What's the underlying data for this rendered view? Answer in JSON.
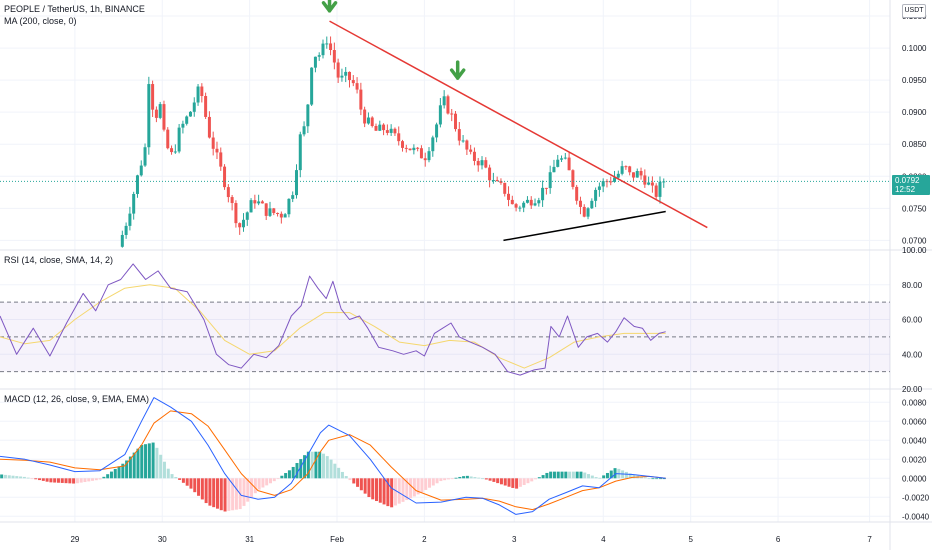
{
  "header": {
    "symbol_line": "PEOPLE / TetherUS, 1h, BINANCE",
    "ma_line": "MA (200, close, 0)",
    "currency": "USDT",
    "last_price": "0.0792",
    "countdown": "12:52"
  },
  "rsi_panel": {
    "legend": "RSI (14, close, SMA, 14, 2)"
  },
  "macd_panel": {
    "legend": "MACD (12, 26, close, 9, EMA, EMA)"
  },
  "colors": {
    "up": "#26a69a",
    "down": "#ef5350",
    "rsi": "#7e57c2",
    "rsi_ma": "#f5d76e",
    "macd": "#2962ff",
    "signal": "#ff6d00",
    "trend_upper": "#e53935",
    "trend_lower": "#000000",
    "arrow": "#43a047"
  },
  "chart_data": [
    {
      "type": "candlestick",
      "title": "PEOPLE / TetherUS, 1h, BINANCE",
      "ylim": [
        0.0685,
        0.1075
      ],
      "yticks": [
        "0.1050",
        "0.1000",
        "0.0950",
        "0.0900",
        "0.0850",
        "0.0800",
        "0.0750",
        "0.0700"
      ],
      "xticks": [
        "29",
        "30",
        "31",
        "Feb",
        "2",
        "3",
        "4",
        "5",
        "6",
        "7"
      ],
      "xlim": [
        0,
        11.2
      ],
      "waypoints": [
        [
          1.47,
          0.069
        ],
        [
          1.58,
          0.0735
        ],
        [
          1.7,
          0.08
        ],
        [
          1.8,
          0.085
        ],
        [
          1.84,
          0.097
        ],
        [
          1.9,
          0.088
        ],
        [
          1.96,
          0.092
        ],
        [
          2.03,
          0.085
        ],
        [
          2.12,
          0.083
        ],
        [
          2.2,
          0.087
        ],
        [
          2.33,
          0.09
        ],
        [
          2.45,
          0.094
        ],
        [
          2.55,
          0.087
        ],
        [
          2.7,
          0.081
        ],
        [
          2.82,
          0.076
        ],
        [
          2.92,
          0.072
        ],
        [
          3.1,
          0.0765
        ],
        [
          3.25,
          0.0745
        ],
        [
          3.45,
          0.074
        ],
        [
          3.57,
          0.078
        ],
        [
          3.65,
          0.086
        ],
        [
          3.72,
          0.088
        ],
        [
          3.8,
          0.099
        ],
        [
          3.9,
          0.099
        ],
        [
          3.97,
          0.1015
        ],
        [
          4.05,
          0.0985
        ],
        [
          4.12,
          0.095
        ],
        [
          4.22,
          0.0955
        ],
        [
          4.32,
          0.094
        ],
        [
          4.4,
          0.0895
        ],
        [
          4.55,
          0.087
        ],
        [
          4.68,
          0.0875
        ],
        [
          4.8,
          0.086
        ],
        [
          4.9,
          0.085
        ],
        [
          5.02,
          0.084
        ],
        [
          5.15,
          0.083
        ],
        [
          5.28,
          0.0875
        ],
        [
          5.37,
          0.092
        ],
        [
          5.47,
          0.0895
        ],
        [
          5.57,
          0.086
        ],
        [
          5.7,
          0.083
        ],
        [
          5.85,
          0.082
        ],
        [
          5.97,
          0.079
        ],
        [
          6.1,
          0.078
        ],
        [
          6.22,
          0.075
        ],
        [
          6.38,
          0.076
        ],
        [
          6.52,
          0.077
        ],
        [
          6.65,
          0.0795
        ],
        [
          6.75,
          0.083
        ],
        [
          6.85,
          0.082
        ],
        [
          6.95,
          0.078
        ],
        [
          7.05,
          0.074
        ],
        [
          7.2,
          0.078
        ],
        [
          7.3,
          0.079
        ],
        [
          7.45,
          0.08
        ],
        [
          7.55,
          0.0815
        ],
        [
          7.62,
          0.08
        ],
        [
          7.72,
          0.0805
        ],
        [
          7.8,
          0.0795
        ],
        [
          7.92,
          0.077
        ],
        [
          8.0,
          0.079
        ]
      ],
      "trend_lines": [
        {
          "from": [
            3.96,
            0.1042
          ],
          "to": [
            8.5,
            0.072
          ],
          "color": "red"
        },
        {
          "from": [
            6.05,
            0.07
          ],
          "to": [
            8.0,
            0.0745
          ],
          "color": "black"
        }
      ],
      "markers": [
        {
          "x": 3.96,
          "y": 0.1055,
          "shape": "down-arrow"
        },
        {
          "x": 5.5,
          "y": 0.095,
          "shape": "down-arrow"
        }
      ],
      "last_value": 0.0792
    },
    {
      "type": "line",
      "title": "RSI (14, close, SMA, 14, 2)",
      "ylim": [
        20,
        100
      ],
      "yticks": [
        "100.00",
        "80.00",
        "60.00",
        "40.00",
        "20.00"
      ],
      "bands": {
        "upper": 70,
        "middle": 50,
        "lower": 30
      },
      "series": [
        {
          "name": "RSI",
          "points": [
            [
              0,
              62
            ],
            [
              0.2,
              40
            ],
            [
              0.4,
              55
            ],
            [
              0.6,
              39
            ],
            [
              0.8,
              58
            ],
            [
              1.0,
              75
            ],
            [
              1.15,
              65
            ],
            [
              1.3,
              80
            ],
            [
              1.45,
              83
            ],
            [
              1.6,
              92
            ],
            [
              1.75,
              83
            ],
            [
              1.9,
              88
            ],
            [
              2.05,
              78
            ],
            [
              2.25,
              76
            ],
            [
              2.45,
              60
            ],
            [
              2.6,
              40
            ],
            [
              2.75,
              34
            ],
            [
              2.9,
              32
            ],
            [
              3.05,
              40
            ],
            [
              3.2,
              38
            ],
            [
              3.35,
              45
            ],
            [
              3.5,
              62
            ],
            [
              3.62,
              68
            ],
            [
              3.72,
              85
            ],
            [
              3.82,
              78
            ],
            [
              3.92,
              72
            ],
            [
              4.0,
              82
            ],
            [
              4.1,
              66
            ],
            [
              4.2,
              60
            ],
            [
              4.32,
              62
            ],
            [
              4.42,
              55
            ],
            [
              4.55,
              44
            ],
            [
              4.72,
              42
            ],
            [
              4.85,
              40
            ],
            [
              5.0,
              42
            ],
            [
              5.1,
              39
            ],
            [
              5.22,
              52
            ],
            [
              5.32,
              55
            ],
            [
              5.42,
              58
            ],
            [
              5.52,
              50
            ],
            [
              5.65,
              47
            ],
            [
              5.8,
              44
            ],
            [
              5.95,
              40
            ],
            [
              6.1,
              30
            ],
            [
              6.25,
              28
            ],
            [
              6.42,
              31
            ],
            [
              6.55,
              32
            ],
            [
              6.62,
              56
            ],
            [
              6.72,
              50
            ],
            [
              6.82,
              62
            ],
            [
              6.95,
              44
            ],
            [
              7.05,
              50
            ],
            [
              7.18,
              52
            ],
            [
              7.3,
              47
            ],
            [
              7.4,
              53
            ],
            [
              7.5,
              61
            ],
            [
              7.62,
              56
            ],
            [
              7.72,
              55
            ],
            [
              7.82,
              48
            ],
            [
              7.92,
              52
            ],
            [
              8.0,
              53
            ]
          ]
        },
        {
          "name": "RSI MA",
          "points": [
            [
              0,
              50
            ],
            [
              0.3,
              46
            ],
            [
              0.6,
              48
            ],
            [
              0.9,
              60
            ],
            [
              1.2,
              70
            ],
            [
              1.5,
              78
            ],
            [
              1.8,
              80
            ],
            [
              2.1,
              78
            ],
            [
              2.4,
              65
            ],
            [
              2.7,
              48
            ],
            [
              3.0,
              40
            ],
            [
              3.3,
              42
            ],
            [
              3.6,
              55
            ],
            [
              3.9,
              64
            ],
            [
              4.2,
              64
            ],
            [
              4.5,
              56
            ],
            [
              4.8,
              47
            ],
            [
              5.1,
              45
            ],
            [
              5.4,
              48
            ],
            [
              5.7,
              47
            ],
            [
              6.0,
              38
            ],
            [
              6.3,
              32
            ],
            [
              6.6,
              38
            ],
            [
              6.9,
              47
            ],
            [
              7.2,
              50
            ],
            [
              7.5,
              52
            ],
            [
              7.8,
              52
            ],
            [
              8.0,
              52
            ]
          ]
        }
      ]
    },
    {
      "type": "line",
      "title": "MACD (12, 26, close, 9, EMA, EMA)",
      "ylim": [
        -0.0046,
        0.0094
      ],
      "yticks": [
        "0.0080",
        "0.0060",
        "0.0040",
        "0.0020",
        "0.0000",
        "-0.0020",
        "-0.0040"
      ],
      "series": [
        {
          "name": "MACD",
          "points": [
            [
              0,
              0.0023
            ],
            [
              0.3,
              0.002
            ],
            [
              0.6,
              0.0014
            ],
            [
              0.9,
              0.0007
            ],
            [
              1.2,
              0.0008
            ],
            [
              1.5,
              0.0025
            ],
            [
              1.7,
              0.006
            ],
            [
              1.85,
              0.0085
            ],
            [
              2.05,
              0.0075
            ],
            [
              2.3,
              0.006
            ],
            [
              2.5,
              0.0035
            ],
            [
              2.7,
              0.0005
            ],
            [
              2.9,
              -0.0018
            ],
            [
              3.1,
              -0.0022
            ],
            [
              3.3,
              -0.002
            ],
            [
              3.5,
              -0.0005
            ],
            [
              3.7,
              0.0025
            ],
            [
              3.85,
              0.0048
            ],
            [
              3.95,
              0.0056
            ],
            [
              4.2,
              0.0045
            ],
            [
              4.45,
              0.002
            ],
            [
              4.7,
              -0.001
            ],
            [
              5.0,
              -0.0026
            ],
            [
              5.3,
              -0.0025
            ],
            [
              5.6,
              -0.002
            ],
            [
              5.8,
              -0.0021
            ],
            [
              6.0,
              -0.0028
            ],
            [
              6.2,
              -0.0038
            ],
            [
              6.4,
              -0.0035
            ],
            [
              6.6,
              -0.0022
            ],
            [
              6.8,
              -0.0015
            ],
            [
              7.0,
              -0.0008
            ],
            [
              7.2,
              -0.001
            ],
            [
              7.4,
              0.0005
            ],
            [
              7.6,
              0.0004
            ],
            [
              7.8,
              0.0002
            ],
            [
              8.0,
              0.0
            ]
          ]
        },
        {
          "name": "Signal",
          "points": [
            [
              0,
              0.002
            ],
            [
              0.3,
              0.0019
            ],
            [
              0.6,
              0.0017
            ],
            [
              0.9,
              0.0011
            ],
            [
              1.2,
              0.0009
            ],
            [
              1.5,
              0.0013
            ],
            [
              1.7,
              0.0035
            ],
            [
              1.85,
              0.0058
            ],
            [
              2.05,
              0.0071
            ],
            [
              2.3,
              0.0068
            ],
            [
              2.5,
              0.0055
            ],
            [
              2.7,
              0.003
            ],
            [
              2.9,
              0.0005
            ],
            [
              3.1,
              -0.0013
            ],
            [
              3.3,
              -0.0018
            ],
            [
              3.5,
              -0.0012
            ],
            [
              3.7,
              0.0005
            ],
            [
              3.85,
              0.0028
            ],
            [
              3.95,
              0.004
            ],
            [
              4.2,
              0.0046
            ],
            [
              4.45,
              0.0035
            ],
            [
              4.7,
              0.0012
            ],
            [
              5.0,
              -0.0013
            ],
            [
              5.3,
              -0.0023
            ],
            [
              5.6,
              -0.0022
            ],
            [
              5.8,
              -0.0021
            ],
            [
              6.0,
              -0.0024
            ],
            [
              6.2,
              -0.003
            ],
            [
              6.4,
              -0.0033
            ],
            [
              6.6,
              -0.0027
            ],
            [
              6.8,
              -0.002
            ],
            [
              7.0,
              -0.0013
            ],
            [
              7.2,
              -0.001
            ],
            [
              7.4,
              -0.0003
            ],
            [
              7.6,
              0.0001
            ],
            [
              7.8,
              0.0002
            ],
            [
              8.0,
              0.0
            ]
          ]
        }
      ]
    }
  ]
}
